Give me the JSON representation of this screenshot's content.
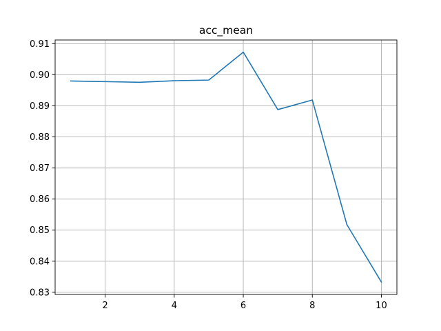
{
  "chart_data": {
    "type": "line",
    "title": "acc_mean",
    "xlabel": "",
    "ylabel": "",
    "x": [
      1,
      2,
      3,
      4,
      5,
      6,
      7,
      8,
      9,
      10
    ],
    "series": [
      {
        "values": [
          0.898,
          0.8978,
          0.8976,
          0.8981,
          0.8983,
          0.9073,
          0.8888,
          0.8919,
          0.8518,
          0.8333
        ],
        "color": "#1f77b4"
      }
    ],
    "xlim": [
      0.55,
      10.45
    ],
    "ylim": [
      0.8293,
      0.9112
    ],
    "xticks": [
      2,
      4,
      6,
      8,
      10
    ],
    "xtick_labels": [
      "2",
      "4",
      "6",
      "8",
      "10"
    ],
    "yticks": [
      0.83,
      0.84,
      0.85,
      0.86,
      0.87,
      0.88,
      0.89,
      0.9,
      0.91
    ],
    "ytick_labels": [
      "0.83",
      "0.84",
      "0.85",
      "0.86",
      "0.87",
      "0.88",
      "0.89",
      "0.90",
      "0.91"
    ],
    "grid": true,
    "legend": "none"
  }
}
